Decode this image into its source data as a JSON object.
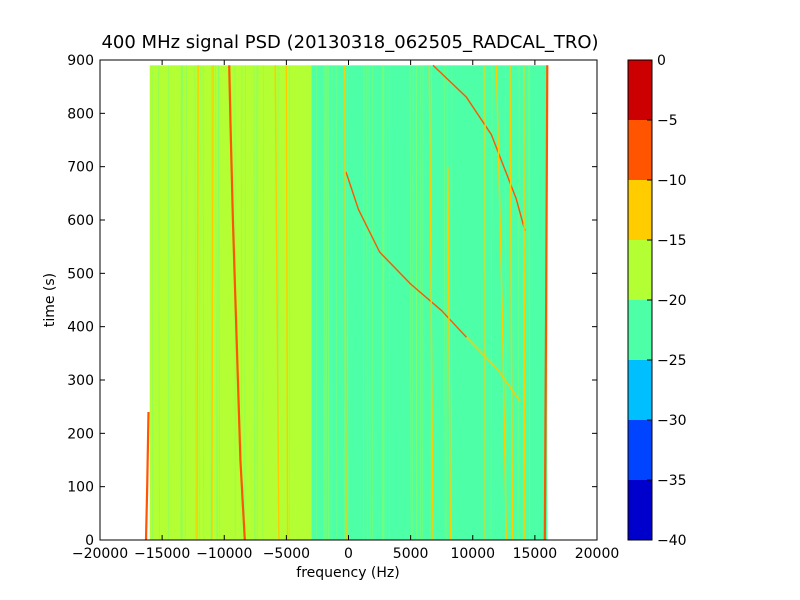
{
  "chart_data": {
    "type": "heatmap",
    "title": "400 MHz signal PSD (20130318_062505_RADCAL_TRO)",
    "xlabel": "frequency (Hz)",
    "ylabel": "time (s)",
    "xlim": [
      -20000,
      20000
    ],
    "ylim": [
      0,
      900
    ],
    "x_ticks": [
      -20000,
      -15000,
      -10000,
      -5000,
      0,
      5000,
      10000,
      15000,
      20000
    ],
    "x_tick_labels": [
      "−20000",
      "−15000",
      "−10000",
      "−5000",
      "0",
      "5000",
      "10000",
      "15000",
      "20000"
    ],
    "y_ticks": [
      0,
      100,
      200,
      300,
      400,
      500,
      600,
      700,
      800,
      900
    ],
    "y_tick_labels": [
      "0",
      "100",
      "200",
      "300",
      "400",
      "500",
      "600",
      "700",
      "800",
      "900"
    ],
    "data_extent": {
      "x": [
        -16000,
        16000
      ],
      "y": [
        0,
        890
      ]
    },
    "colorbar": {
      "levels": [
        -40,
        -35,
        -30,
        -25,
        -20,
        -15,
        -10,
        -5,
        0
      ],
      "tick_labels": [
        "−40",
        "−35",
        "−30",
        "−25",
        "−20",
        "−15",
        "−10",
        "−5",
        "0"
      ],
      "colors": [
        "#0000cc",
        "#0044ff",
        "#00bfff",
        "#4dffa6",
        "#b3ff33",
        "#ffcc00",
        "#ff5500",
        "#cc0000"
      ]
    },
    "background_regions": [
      {
        "x": [
          -16000,
          -3000
        ],
        "level_db": -17.5,
        "color": "#b3ff33"
      },
      {
        "x": [
          -3000,
          16000
        ],
        "level_db": -22.5,
        "color": "#4dffa6"
      }
    ],
    "lines": [
      {
        "kind": "carrier",
        "color": "#ff5500",
        "points": [
          [
            -16300,
            0
          ],
          [
            -16200,
            100
          ],
          [
            -16100,
            240
          ]
        ]
      },
      {
        "kind": "carrier",
        "color": "#ff5500",
        "points": [
          [
            -8350,
            0
          ],
          [
            -8700,
            150
          ],
          [
            -8900,
            300
          ],
          [
            -9100,
            450
          ],
          [
            -9300,
            600
          ],
          [
            -9500,
            780
          ],
          [
            -9600,
            890
          ]
        ]
      },
      {
        "kind": "carrier",
        "color": "#ff5500",
        "points": [
          [
            15800,
            0
          ],
          [
            15850,
            200
          ],
          [
            15900,
            430
          ],
          [
            15950,
            650
          ],
          [
            16000,
            890
          ]
        ]
      },
      {
        "kind": "doppler",
        "color": "#ff5500",
        "points": [
          [
            -200,
            690
          ],
          [
            800,
            620
          ],
          [
            2500,
            540
          ],
          [
            5000,
            480
          ],
          [
            7500,
            430
          ],
          [
            9500,
            380
          ]
        ]
      },
      {
        "kind": "doppler",
        "color": "#ffcc00",
        "points": [
          [
            9500,
            380
          ],
          [
            12000,
            320
          ],
          [
            13800,
            260
          ]
        ]
      },
      {
        "kind": "doppler",
        "color": "#ff5500",
        "points": [
          [
            6800,
            890
          ],
          [
            9500,
            830
          ],
          [
            11500,
            760
          ],
          [
            12500,
            700
          ],
          [
            13500,
            640
          ],
          [
            14200,
            580
          ]
        ]
      },
      {
        "kind": "spur",
        "color": "#ffcc00",
        "points": [
          [
            -12200,
            0
          ],
          [
            -12100,
            890
          ]
        ]
      },
      {
        "kind": "spur",
        "color": "#ffcc00",
        "points": [
          [
            -11000,
            0
          ],
          [
            -10900,
            890
          ]
        ]
      },
      {
        "kind": "spur",
        "color": "#ffcc00",
        "points": [
          [
            -5600,
            0
          ],
          [
            -5900,
            890
          ]
        ]
      },
      {
        "kind": "spur",
        "color": "#ffcc00",
        "points": [
          [
            -4900,
            0
          ],
          [
            -5000,
            890
          ]
        ]
      },
      {
        "kind": "spur",
        "color": "#ffcc00",
        "points": [
          [
            -200,
            0
          ],
          [
            -300,
            890
          ]
        ]
      },
      {
        "kind": "spur",
        "color": "#ffcc00",
        "points": [
          [
            6800,
            0
          ],
          [
            6500,
            890
          ]
        ]
      },
      {
        "kind": "spur",
        "color": "#ffcc00",
        "points": [
          [
            8200,
            0
          ],
          [
            8000,
            700
          ]
        ]
      },
      {
        "kind": "spur",
        "color": "#ffcc00",
        "points": [
          [
            11000,
            0
          ],
          [
            11000,
            890
          ]
        ]
      },
      {
        "kind": "spur",
        "color": "#ffcc00",
        "points": [
          [
            12700,
            0
          ],
          [
            12400,
            400
          ],
          [
            11900,
            890
          ]
        ]
      },
      {
        "kind": "spur",
        "color": "#ffcc00",
        "points": [
          [
            13200,
            0
          ],
          [
            13000,
            890
          ]
        ]
      },
      {
        "kind": "spur",
        "color": "#ffcc00",
        "points": [
          [
            14200,
            0
          ],
          [
            14100,
            890
          ]
        ]
      }
    ]
  }
}
